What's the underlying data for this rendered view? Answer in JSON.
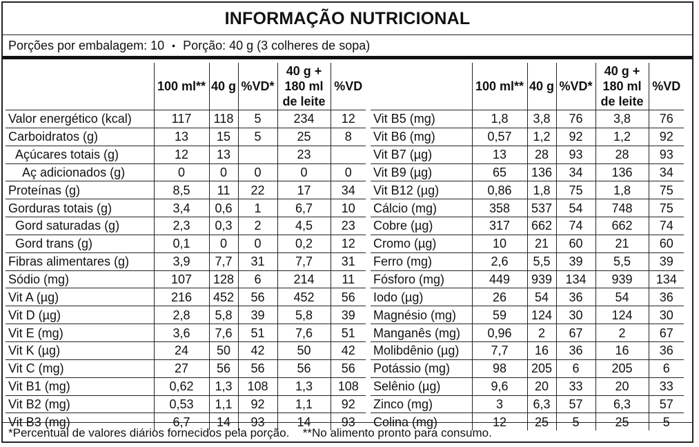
{
  "title": "INFORMAÇÃO NUTRICIONAL",
  "servings": {
    "per_package": "Porções por embalagem: 10",
    "bullet": "•",
    "portion": "Porção: 40 g (3 colheres de sopa)"
  },
  "headers": {
    "c100": "100 ml**",
    "c40": "40 g",
    "cvd": "%VD*",
    "cmix_l1": "40 g +",
    "cmix_l2": "180 ml",
    "cmix_l3": "de leite",
    "cvd2": "%VD"
  },
  "left_rows": [
    {
      "name": "Valor energético (kcal)",
      "v100": "117",
      "v40": "118",
      "vd": "5",
      "mix": "234",
      "vd2": "12",
      "indent": 0
    },
    {
      "name": "Carboidratos (g)",
      "v100": "13",
      "v40": "15",
      "vd": "5",
      "mix": "25",
      "vd2": "8",
      "indent": 0
    },
    {
      "name": "Açúcares totais (g)",
      "v100": "12",
      "v40": "13",
      "vd": "",
      "mix": "23",
      "vd2": "",
      "indent": 1
    },
    {
      "name": "Aç adicionados (g)",
      "v100": "0",
      "v40": "0",
      "vd": "0",
      "mix": "0",
      "vd2": "0",
      "indent": 2
    },
    {
      "name": "Proteínas (g)",
      "v100": "8,5",
      "v40": "11",
      "vd": "22",
      "mix": "17",
      "vd2": "34",
      "indent": 0
    },
    {
      "name": "Gorduras totais (g)",
      "v100": "3,4",
      "v40": "0,6",
      "vd": "1",
      "mix": "6,7",
      "vd2": "10",
      "indent": 0
    },
    {
      "name": "Gord saturadas (g)",
      "v100": "2,3",
      "v40": "0,3",
      "vd": "2",
      "mix": "4,5",
      "vd2": "23",
      "indent": 1
    },
    {
      "name": "Gord trans (g)",
      "v100": "0,1",
      "v40": "0",
      "vd": "0",
      "mix": "0,2",
      "vd2": "12",
      "indent": 1
    },
    {
      "name": "Fibras alimentares (g)",
      "v100": "3,9",
      "v40": "7,7",
      "vd": "31",
      "mix": "7,7",
      "vd2": "31",
      "indent": 0
    },
    {
      "name": "Sódio (mg)",
      "v100": "107",
      "v40": "128",
      "vd": "6",
      "mix": "214",
      "vd2": "11",
      "indent": 0
    },
    {
      "name": "Vit A (µg)",
      "v100": "216",
      "v40": "452",
      "vd": "56",
      "mix": "452",
      "vd2": "56",
      "indent": 0
    },
    {
      "name": "Vit D (µg)",
      "v100": "2,8",
      "v40": "5,8",
      "vd": "39",
      "mix": "5,8",
      "vd2": "39",
      "indent": 0
    },
    {
      "name": "Vit E (mg)",
      "v100": "3,6",
      "v40": "7,6",
      "vd": "51",
      "mix": "7,6",
      "vd2": "51",
      "indent": 0
    },
    {
      "name": "Vit K (µg)",
      "v100": "24",
      "v40": "50",
      "vd": "42",
      "mix": "50",
      "vd2": "42",
      "indent": 0
    },
    {
      "name": "Vit C (mg)",
      "v100": "27",
      "v40": "56",
      "vd": "56",
      "mix": "56",
      "vd2": "56",
      "indent": 0
    },
    {
      "name": "Vit B1 (mg)",
      "v100": "0,62",
      "v40": "1,3",
      "vd": "108",
      "mix": "1,3",
      "vd2": "108",
      "indent": 0
    },
    {
      "name": "Vit B2 (mg)",
      "v100": "0,53",
      "v40": "1,1",
      "vd": "92",
      "mix": "1,1",
      "vd2": "92",
      "indent": 0
    },
    {
      "name": "Vit B3 (mg)",
      "v100": "6,7",
      "v40": "14",
      "vd": "93",
      "mix": "14",
      "vd2": "93",
      "indent": 0
    }
  ],
  "right_rows": [
    {
      "name": "Vit B5 (mg)",
      "v100": "1,8",
      "v40": "3,8",
      "vd": "76",
      "mix": "3,8",
      "vd2": "76"
    },
    {
      "name": "Vit B6 (mg)",
      "v100": "0,57",
      "v40": "1,2",
      "vd": "92",
      "mix": "1,2",
      "vd2": "92"
    },
    {
      "name": "Vit B7 (µg)",
      "v100": "13",
      "v40": "28",
      "vd": "93",
      "mix": "28",
      "vd2": "93"
    },
    {
      "name": "Vit B9 (µg)",
      "v100": "65",
      "v40": "136",
      "vd": "34",
      "mix": "136",
      "vd2": "34"
    },
    {
      "name": "Vit B12 (µg)",
      "v100": "0,86",
      "v40": "1,8",
      "vd": "75",
      "mix": "1,8",
      "vd2": "75"
    },
    {
      "name": "Cálcio (mg)",
      "v100": "358",
      "v40": "537",
      "vd": "54",
      "mix": "748",
      "vd2": "75"
    },
    {
      "name": "Cobre (µg)",
      "v100": "317",
      "v40": "662",
      "vd": "74",
      "mix": "662",
      "vd2": "74"
    },
    {
      "name": "Cromo (µg)",
      "v100": "10",
      "v40": "21",
      "vd": "60",
      "mix": "21",
      "vd2": "60"
    },
    {
      "name": "Ferro (mg)",
      "v100": "2,6",
      "v40": "5,5",
      "vd": "39",
      "mix": "5,5",
      "vd2": "39"
    },
    {
      "name": "Fósforo (mg)",
      "v100": "449",
      "v40": "939",
      "vd": "134",
      "mix": "939",
      "vd2": "134"
    },
    {
      "name": "Iodo (µg)",
      "v100": "26",
      "v40": "54",
      "vd": "36",
      "mix": "54",
      "vd2": "36"
    },
    {
      "name": "Magnésio (mg)",
      "v100": "59",
      "v40": "124",
      "vd": "30",
      "mix": "124",
      "vd2": "30"
    },
    {
      "name": "Manganês (mg)",
      "v100": "0,96",
      "v40": "2",
      "vd": "67",
      "mix": "2",
      "vd2": "67"
    },
    {
      "name": "Molibdênio (µg)",
      "v100": "7,7",
      "v40": "16",
      "vd": "36",
      "mix": "16",
      "vd2": "36"
    },
    {
      "name": "Potássio (mg)",
      "v100": "98",
      "v40": "205",
      "vd": "6",
      "mix": "205",
      "vd2": "6"
    },
    {
      "name": "Selênio (µg)",
      "v100": "9,6",
      "v40": "20",
      "vd": "33",
      "mix": "20",
      "vd2": "33"
    },
    {
      "name": "Zinco (mg)",
      "v100": "3",
      "v40": "6,3",
      "vd": "57",
      "mix": "6,3",
      "vd2": "57"
    },
    {
      "name": "Colina (mg)",
      "v100": "12",
      "v40": "25",
      "vd": "5",
      "mix": "25",
      "vd2": "5"
    }
  ],
  "footnote": {
    "vd_note": "*Percentual de valores diários fornecidos pela porção.",
    "ready_note": "**No alimento pronto para consumo."
  }
}
